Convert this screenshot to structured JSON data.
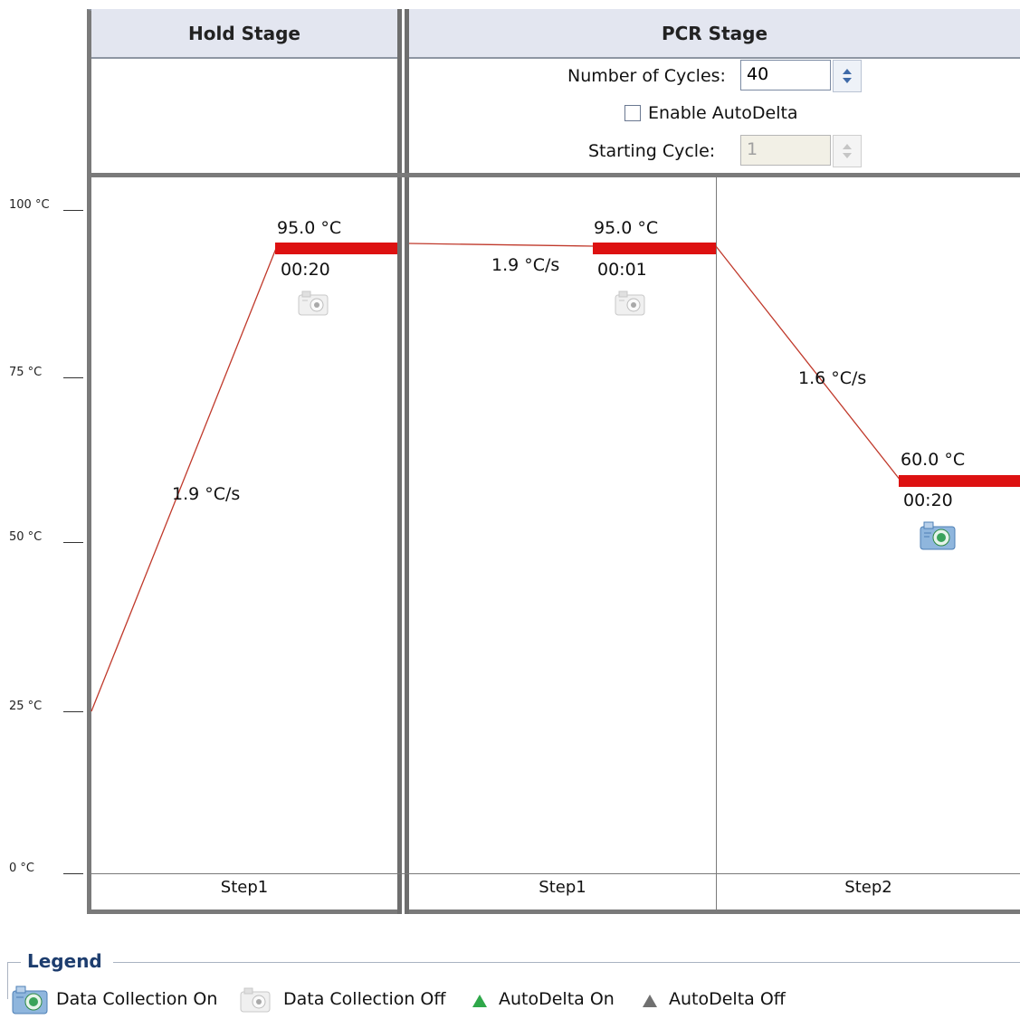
{
  "stages": {
    "hold": {
      "title": "Hold Stage"
    },
    "pcr": {
      "title": "PCR Stage",
      "cycles_label": "Number of Cycles:",
      "cycles_value": "40",
      "autodelta_label": "Enable AutoDelta",
      "autodelta_checked": false,
      "starting_cycle_label": "Starting Cycle:",
      "starting_cycle_value": "1"
    }
  },
  "axis": {
    "ticks": [
      "100 °C",
      "75 °C",
      "50 °C",
      "25 °C",
      "0 °C"
    ]
  },
  "steps": {
    "hold_step1": {
      "label": "Step1",
      "temp": "95.0 °C",
      "time": "00:20",
      "ramp": "1.9 °C/s",
      "data_collection": "off"
    },
    "pcr_step1": {
      "label": "Step1",
      "temp": "95.0 °C",
      "time": "00:01",
      "ramp": "1.9 °C/s",
      "data_collection": "off"
    },
    "pcr_step2": {
      "label": "Step2",
      "temp": "60.0 °C",
      "time": "00:20",
      "ramp": "1.6 °C/s",
      "data_collection": "on"
    }
  },
  "legend": {
    "title": "Legend",
    "data_collection_on": "Data Collection On",
    "data_collection_off": "Data Collection Off",
    "autodelta_on": "AutoDelta On",
    "autodelta_off": "AutoDelta Off",
    "colors": {
      "autodelta_on": "#2fa84a",
      "autodelta_off": "#707070",
      "hold_bar": "#dd1111",
      "ramp_line": "#c0392b"
    }
  }
}
